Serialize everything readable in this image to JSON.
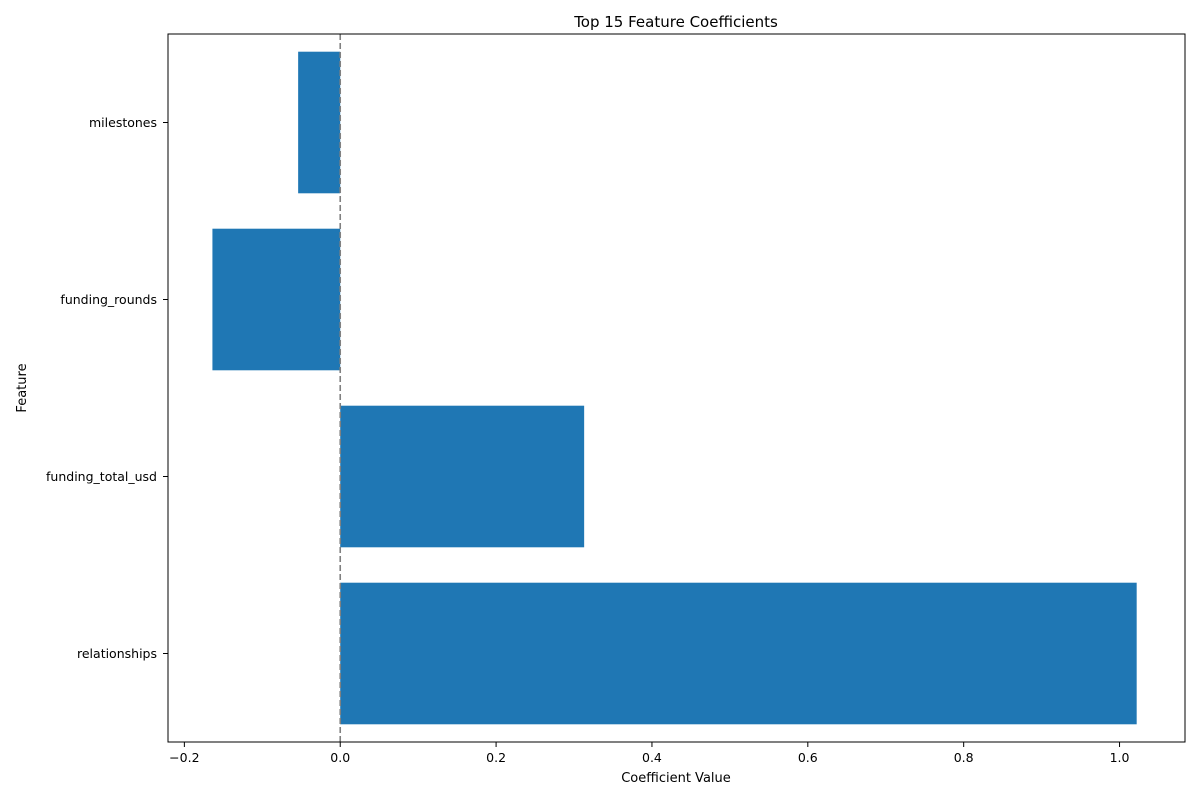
{
  "chart_data": {
    "type": "bar",
    "orientation": "horizontal",
    "title": "Top 15 Feature Coefficients",
    "xlabel": "Coefficient Value",
    "ylabel": "Feature",
    "categories": [
      "milestones",
      "funding_rounds",
      "funding_total_usd",
      "relationships"
    ],
    "values": [
      -0.054,
      -0.164,
      0.313,
      1.022
    ],
    "xlim": [
      -0.221,
      1.084
    ],
    "xticks": [
      -0.2,
      0.0,
      0.2,
      0.4,
      0.6,
      0.8,
      1.0
    ],
    "xtick_labels": [
      "−0.2",
      "0.0",
      "0.2",
      "0.4",
      "0.6",
      "0.8",
      "1.0"
    ],
    "reference_line": {
      "x": 0,
      "style": "dashed",
      "color": "#808080"
    },
    "bar_color": "#1f77b4",
    "grid": false
  }
}
